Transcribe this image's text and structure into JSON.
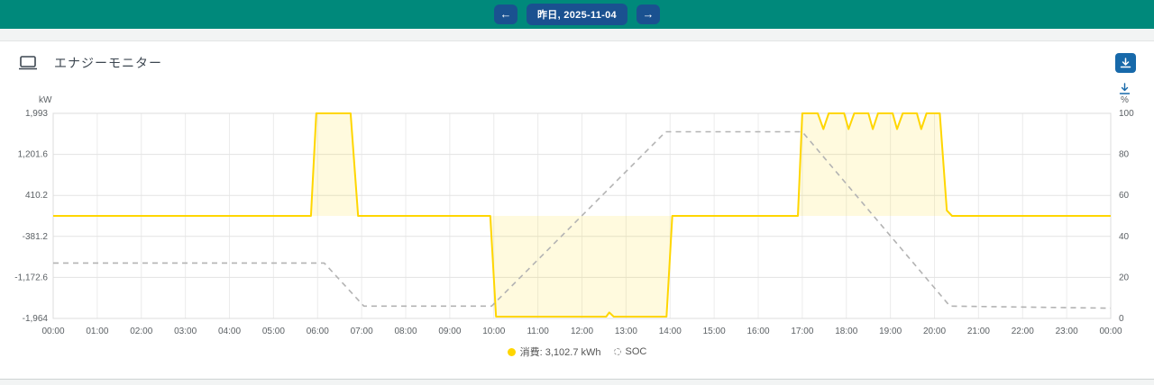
{
  "topbar": {
    "prev_label": "←",
    "next_label": "→",
    "date_label": "昨日, 2025-11-04",
    "bar_color": "#00897B",
    "button_color": "#1a5190"
  },
  "panel": {
    "title": "エナジーモニター",
    "accent_color": "#1769aa"
  },
  "chart_data": {
    "type": "line",
    "title": "エナジーモニター",
    "x_range": [
      0,
      24
    ],
    "x_ticks": [
      "00:00",
      "01:00",
      "02:00",
      "03:00",
      "04:00",
      "05:00",
      "06:00",
      "07:00",
      "08:00",
      "09:00",
      "10:00",
      "11:00",
      "12:00",
      "13:00",
      "14:00",
      "15:00",
      "16:00",
      "17:00",
      "18:00",
      "19:00",
      "20:00",
      "21:00",
      "22:00",
      "23:00",
      "00:00"
    ],
    "left_axis": {
      "unit": "kW",
      "min": -1964,
      "max": 1993,
      "ticks": [
        "1,993",
        "1,201.6",
        "410.2",
        "-381.2",
        "-1,172.6",
        "-1,964"
      ]
    },
    "right_axis": {
      "unit": "%",
      "min": 0,
      "max": 100,
      "ticks": [
        "100",
        "80",
        "60",
        "40",
        "20",
        "0"
      ]
    },
    "grid": true,
    "legend_position": "bottom",
    "series": [
      {
        "name": "消費",
        "legend": "消費: 3,102.7 kWh",
        "color": "#FFD600",
        "axis": "left",
        "style": "solid",
        "fill": true,
        "points": [
          [
            0,
            15
          ],
          [
            5.85,
            15
          ],
          [
            5.97,
            1993
          ],
          [
            6.75,
            1993
          ],
          [
            6.92,
            15
          ],
          [
            9.92,
            15
          ],
          [
            10.05,
            -1930
          ],
          [
            12.55,
            -1930
          ],
          [
            12.62,
            -1850
          ],
          [
            12.72,
            -1930
          ],
          [
            13.92,
            -1930
          ],
          [
            14.05,
            15
          ],
          [
            16.9,
            15
          ],
          [
            17.0,
            1993
          ],
          [
            17.35,
            1993
          ],
          [
            17.48,
            1690
          ],
          [
            17.6,
            1993
          ],
          [
            17.95,
            1993
          ],
          [
            18.05,
            1690
          ],
          [
            18.18,
            1993
          ],
          [
            18.5,
            1993
          ],
          [
            18.6,
            1690
          ],
          [
            18.72,
            1993
          ],
          [
            19.05,
            1993
          ],
          [
            19.15,
            1690
          ],
          [
            19.28,
            1993
          ],
          [
            19.6,
            1993
          ],
          [
            19.7,
            1690
          ],
          [
            19.82,
            1993
          ],
          [
            20.12,
            1993
          ],
          [
            20.28,
            120
          ],
          [
            20.4,
            15
          ],
          [
            24,
            15
          ]
        ]
      },
      {
        "name": "SOC",
        "legend": "SOC",
        "color": "#b3b3b3",
        "axis": "right",
        "style": "dashed",
        "fill": false,
        "points": [
          [
            0,
            27
          ],
          [
            6.15,
            27
          ],
          [
            7.05,
            6
          ],
          [
            9.95,
            6
          ],
          [
            13.9,
            91
          ],
          [
            17.0,
            91
          ],
          [
            20.35,
            6
          ],
          [
            24,
            5
          ]
        ]
      }
    ]
  }
}
